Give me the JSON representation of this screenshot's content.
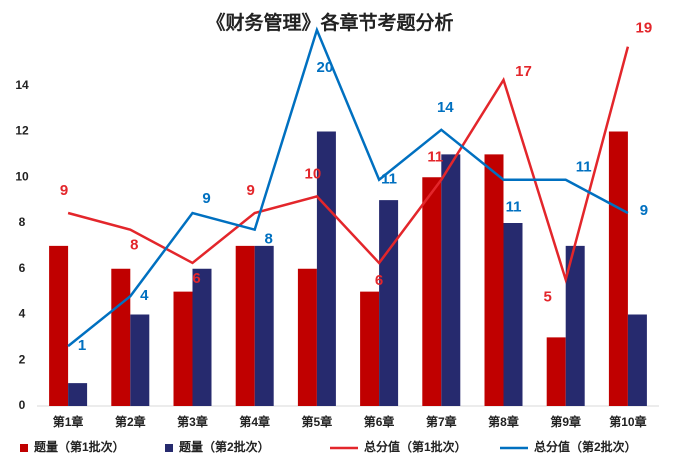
{
  "chart_data": {
    "type": "bar-line",
    "title": "《财务管理》各章节考题分析",
    "categories": [
      "第1章",
      "第2章",
      "第3章",
      "第4章",
      "第5章",
      "第6章",
      "第7章",
      "第8章",
      "第9章",
      "第10章"
    ],
    "series": [
      {
        "name": "题量（第1批次）",
        "type": "bar",
        "color": "#c00000",
        "values": [
          7,
          6,
          5,
          7,
          6,
          5,
          10,
          11,
          3,
          12
        ]
      },
      {
        "name": "题量（第2批次）",
        "type": "bar",
        "color": "#262a6e",
        "values": [
          1,
          4,
          6,
          7,
          12,
          9,
          11,
          8,
          7,
          4
        ]
      },
      {
        "name": "总分值（第1批次）",
        "type": "line",
        "axis": "y2",
        "color": "#e3262b",
        "values": [
          9,
          8,
          6,
          9,
          10,
          6,
          11,
          17,
          5,
          19
        ]
      },
      {
        "name": "总分值（第2批次）",
        "type": "line",
        "axis": "y2",
        "color": "#0070c0",
        "values": [
          1,
          4,
          9,
          8,
          20,
          11,
          14,
          11,
          11,
          9
        ]
      }
    ],
    "ylim": [
      0,
      16
    ],
    "yticks": [
      0,
      2,
      4,
      6,
      8,
      10,
      12,
      14
    ],
    "y2lim": [
      -2.6,
      19.4
    ],
    "legend": "bottom"
  }
}
